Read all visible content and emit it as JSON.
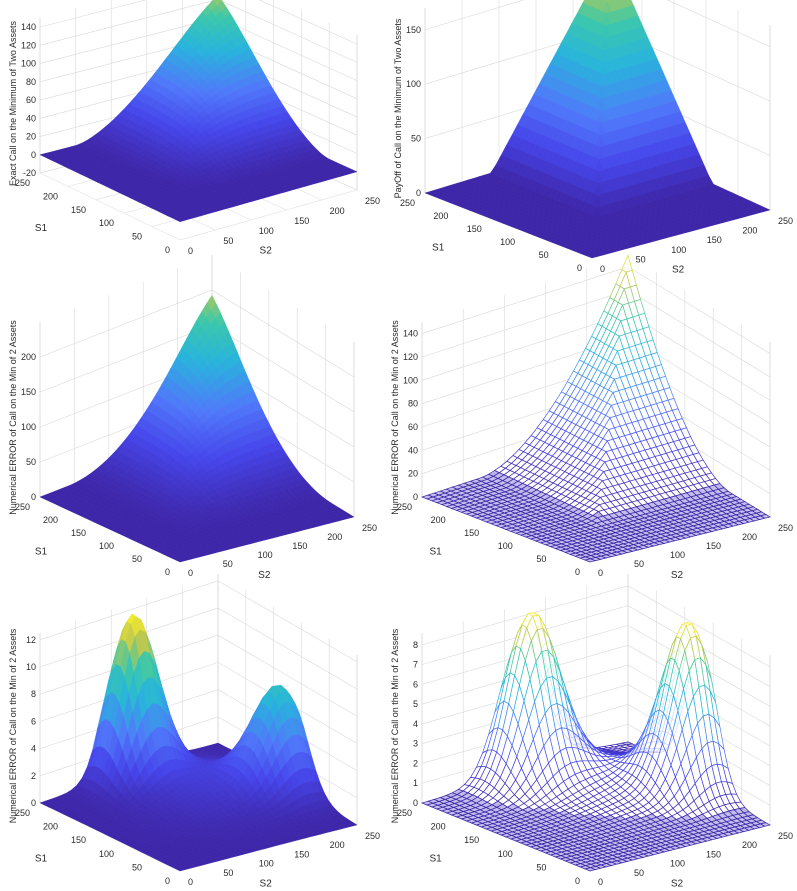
{
  "colors": {
    "surface_low": "#3c2a9e",
    "surface_mid": "#6f78ef",
    "surface_midhigh": "#2fbfd7",
    "surface_high": "#f2d93a",
    "grid": "#d9d9d9",
    "axis": "#8a8a8a",
    "text": "#2b2b2b"
  },
  "chart_data": [
    {
      "id": "p1",
      "type": "surface3d",
      "shape": "exact_call_min",
      "zlabel": "Exact Call on the Minimum of Two Assets",
      "xlabel": "S1",
      "ylabel": "S2",
      "xticks": [
        "0",
        "50",
        "100",
        "150",
        "200",
        "250"
      ],
      "yticks": [
        "0",
        "50",
        "100",
        "150",
        "200",
        "250"
      ],
      "zticks": [
        "-20",
        "0",
        "20",
        "40",
        "60",
        "80",
        "100",
        "120",
        "140"
      ],
      "zlim": [
        -20,
        150
      ],
      "xlim": [
        0,
        250
      ],
      "ylim": [
        0,
        250
      ],
      "peak_z": 150
    },
    {
      "id": "p2",
      "type": "surface3d",
      "shape": "payoff_min",
      "zlabel": "PayOff of Call on the Minimum of Two Assets",
      "xlabel": "S1",
      "ylabel": "S2",
      "xticks": [
        "0",
        "50",
        "100",
        "150",
        "200",
        "250"
      ],
      "yticks": [
        "0",
        "50",
        "100",
        "150",
        "200",
        "250"
      ],
      "zticks": [
        "0",
        "50",
        "100",
        "150"
      ],
      "zlim": [
        0,
        170
      ],
      "xlim": [
        0,
        250
      ],
      "ylim": [
        0,
        250
      ],
      "peak_z": 170
    },
    {
      "id": "p3",
      "type": "surface3d",
      "shape": "numerical_call_min",
      "zlabel": "Numerical ERROR of Call on the Min of 2 Assets",
      "xlabel": "S1",
      "ylabel": "S2",
      "xticks": [
        "0",
        "50",
        "100",
        "150",
        "200",
        "250"
      ],
      "yticks": [
        "0",
        "50",
        "100",
        "150",
        "200",
        "250"
      ],
      "zticks": [
        "0",
        "50",
        "100",
        "150",
        "200"
      ],
      "zlim": [
        0,
        250
      ],
      "xlim": [
        0,
        250
      ],
      "ylim": [
        0,
        250
      ],
      "peak_z": 230
    },
    {
      "id": "p4",
      "type": "mesh3d",
      "shape": "numerical_call_mesh",
      "zlabel": "Numerical ERROR of Call on the Min of 2 Assets",
      "xlabel": "S1",
      "ylabel": "S2",
      "xticks": [
        "0",
        "50",
        "100",
        "150",
        "200",
        "250"
      ],
      "yticks": [
        "0",
        "50",
        "100",
        "150",
        "200",
        "250"
      ],
      "zticks": [
        "0",
        "20",
        "40",
        "60",
        "80",
        "100",
        "120",
        "140"
      ],
      "zlim": [
        0,
        150
      ],
      "xlim": [
        0,
        250
      ],
      "ylim": [
        0,
        250
      ],
      "peak_z": 150
    },
    {
      "id": "p5",
      "type": "surface3d",
      "shape": "error_asym",
      "zlabel": "Numerical ERROR of Call on the Min of 2 Assets",
      "xlabel": "S1",
      "ylabel": "S2",
      "xticks": [
        "0",
        "50",
        "100",
        "150",
        "200",
        "250"
      ],
      "yticks": [
        "0",
        "50",
        "100",
        "150",
        "200",
        "250"
      ],
      "zticks": [
        "0",
        "2",
        "4",
        "6",
        "8",
        "10",
        "12"
      ],
      "zlim": [
        0,
        12.5
      ],
      "xlim": [
        0,
        250
      ],
      "ylim": [
        0,
        250
      ],
      "peak_z": 12.2
    },
    {
      "id": "p6",
      "type": "mesh3d",
      "shape": "error_sym",
      "zlabel": "Numerical ERROR of Call on the Min of 2 Assets",
      "xlabel": "S1",
      "ylabel": "S2",
      "xticks": [
        "0",
        "50",
        "100",
        "150",
        "200",
        "250"
      ],
      "yticks": [
        "0",
        "50",
        "100",
        "150",
        "200",
        "250"
      ],
      "zticks": [
        "0",
        "1",
        "2",
        "3",
        "4",
        "5",
        "6",
        "7",
        "8"
      ],
      "zlim": [
        0,
        8.6
      ],
      "xlim": [
        0,
        250
      ],
      "ylim": [
        0,
        250
      ],
      "peak_z": 8.4
    }
  ]
}
